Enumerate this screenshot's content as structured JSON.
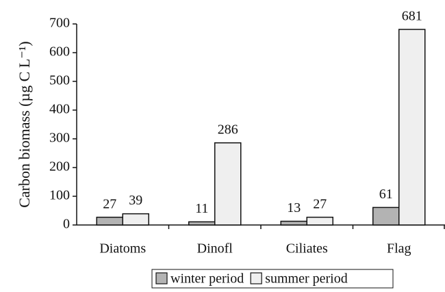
{
  "chart_data": {
    "type": "bar",
    "y_label": "Carbon biomass (µg C L⁻¹)",
    "categories": [
      "Diatoms",
      "Dinofl",
      "Ciliates",
      "Flag"
    ],
    "series": [
      {
        "name": "winter period",
        "color": "#b3b3b3",
        "values": [
          27,
          11,
          13,
          61
        ]
      },
      {
        "name": "summer period",
        "color": "#efefef",
        "values": [
          39,
          286,
          27,
          681
        ]
      }
    ],
    "ylim": [
      0,
      700
    ],
    "yticks": [
      0,
      100,
      200,
      300,
      400,
      500,
      600,
      700
    ],
    "legend": "bottom"
  }
}
